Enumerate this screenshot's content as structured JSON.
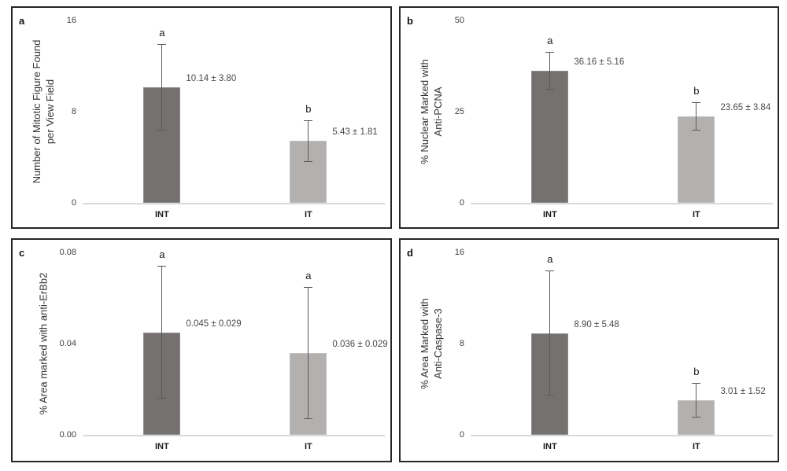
{
  "figure": {
    "colors": {
      "bar_dark": "#767171",
      "bar_dark_border": "#8f8b8b",
      "bar_light": "#b3b0b0",
      "bar_light_border": "#c2bfbf",
      "error_bar": "#595959",
      "baseline": "#d9d9d9",
      "panel_border": "#262626",
      "tick_text": "#404040",
      "value_text": "#4a4a4a",
      "letter_text": "#1a1a1a"
    }
  },
  "chart_data": [
    {
      "type": "bar",
      "panel_letter": "a",
      "categories": [
        "INT",
        "IT"
      ],
      "values": [
        10.14,
        5.43
      ],
      "errors": [
        3.8,
        1.81
      ],
      "data_labels": [
        "10.14 ± 3.80",
        "5.43 ± 1.81"
      ],
      "sig_letters": [
        "a",
        "b"
      ],
      "bar_styles": [
        "dark",
        "light"
      ],
      "ylabel": "Number of Mitotic Figure Found per View Field",
      "ylabel_lines": [
        "Number of Mitotic Figure Found",
        "per View Field"
      ],
      "ylim": [
        0,
        16
      ],
      "ytick_labels": [
        "16",
        "8",
        "0"
      ],
      "grid": false,
      "legend": "none"
    },
    {
      "type": "bar",
      "panel_letter": "b",
      "categories": [
        "INT",
        "IT"
      ],
      "values": [
        36.16,
        23.65
      ],
      "errors": [
        5.16,
        3.84
      ],
      "data_labels": [
        "36.16 ± 5.16",
        "23.65 ± 3.84"
      ],
      "sig_letters": [
        "a",
        "b"
      ],
      "bar_styles": [
        "dark",
        "light"
      ],
      "ylabel": "% Nuclear Marked with Anti-PCNA",
      "ylabel_lines": [
        "% Nuclear Marked with",
        "Anti-PCNA"
      ],
      "ylim": [
        0,
        50
      ],
      "ytick_labels": [
        "50",
        "25",
        "0"
      ],
      "grid": false,
      "legend": "none"
    },
    {
      "type": "bar",
      "panel_letter": "c",
      "categories": [
        "INT",
        "IT"
      ],
      "values": [
        0.045,
        0.036
      ],
      "errors": [
        0.029,
        0.029
      ],
      "data_labels": [
        "0.045 ± 0.029",
        "0.036 ± 0.029"
      ],
      "sig_letters": [
        "a",
        "a"
      ],
      "bar_styles": [
        "dark",
        "light"
      ],
      "ylabel": "% Area marked with anti-ErBb2",
      "ylabel_lines": [
        "% Area marked with anti-ErBb2"
      ],
      "ylim": [
        0,
        0.08
      ],
      "ytick_labels": [
        "0.08",
        "0.04",
        "0.00"
      ],
      "grid": false,
      "legend": "none"
    },
    {
      "type": "bar",
      "panel_letter": "d",
      "categories": [
        "INT",
        "IT"
      ],
      "values": [
        8.9,
        3.01
      ],
      "errors": [
        5.48,
        1.52
      ],
      "data_labels": [
        "8.90 ± 5.48",
        "3.01 ± 1.52"
      ],
      "sig_letters": [
        "a",
        "b"
      ],
      "bar_styles": [
        "dark",
        "light"
      ],
      "ylabel": "% Area Marked with Anti-Caspase-3",
      "ylabel_lines": [
        "% Area Marked with",
        "Anti-Caspase-3"
      ],
      "ylim": [
        0,
        16
      ],
      "ytick_labels": [
        "16",
        "8",
        "0"
      ],
      "grid": false,
      "legend": "none"
    }
  ]
}
